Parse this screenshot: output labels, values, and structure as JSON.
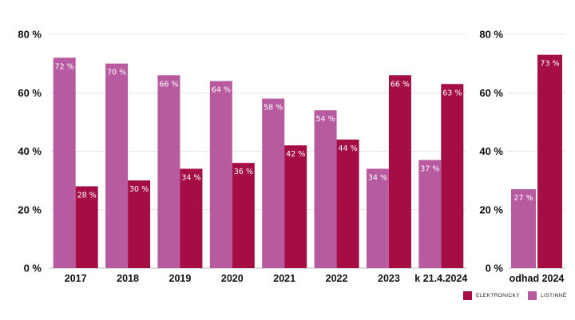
{
  "chart_data": [
    {
      "type": "bar",
      "categories": [
        "2017",
        "2018",
        "2019",
        "2020",
        "2021",
        "2022",
        "2023",
        "k 21.4.2024"
      ],
      "series": [
        {
          "name": "LISTINNĚ",
          "values": [
            72,
            70,
            66,
            64,
            58,
            54,
            34,
            37
          ],
          "color": "#b85aa0"
        },
        {
          "name": "ELEKTRONICKY",
          "values": [
            28,
            30,
            34,
            36,
            42,
            44,
            66,
            63
          ],
          "color": "#a50e45"
        }
      ],
      "data_labels": [
        [
          "72 %",
          "70 %",
          "66 %",
          "64 %",
          "58 %",
          "54 %",
          "34 %",
          "37 %"
        ],
        [
          "28 %",
          "30 %",
          "34 %",
          "36 %",
          "42 %",
          "44 %",
          "66 %",
          "63 %"
        ]
      ],
      "yticks": [
        "0 %",
        "20 %",
        "40 %",
        "60 %",
        "80 %"
      ],
      "ylim": [
        0,
        80
      ],
      "grid": true
    },
    {
      "type": "bar",
      "categories": [
        "odhad 2024"
      ],
      "series": [
        {
          "name": "LISTINNĚ",
          "values": [
            27
          ],
          "color": "#b85aa0"
        },
        {
          "name": "ELEKTRONICKY",
          "values": [
            73
          ],
          "color": "#a50e45"
        }
      ],
      "data_labels": [
        [
          "27 %"
        ],
        [
          "73 %"
        ]
      ],
      "yticks": [
        "0 %",
        "20 %",
        "40 %",
        "60 %",
        "80 %"
      ],
      "ylim": [
        0,
        80
      ],
      "grid": true
    }
  ],
  "legend": {
    "placement": "bottom-right",
    "items": [
      {
        "label": "ELEKTRONICKY",
        "color": "#a50e45"
      },
      {
        "label": "LISTINNĚ",
        "color": "#b85aa0"
      }
    ]
  }
}
